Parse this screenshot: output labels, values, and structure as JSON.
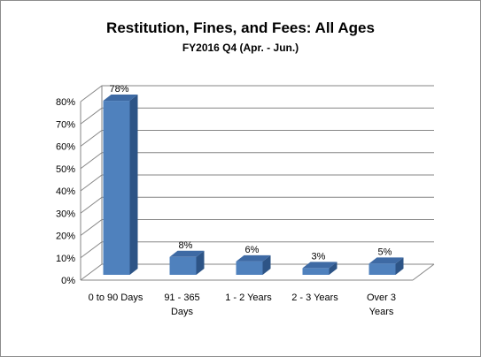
{
  "chart_data": {
    "type": "bar",
    "title": "Restitution,  Fines, and Fees: All Ages",
    "subtitle": "FY2016 Q4 (Apr. - Jun.)",
    "categories": [
      [
        "0 to 90 Days"
      ],
      [
        "91 - 365",
        "Days"
      ],
      [
        "1 - 2 Years"
      ],
      [
        "2 - 3 Years"
      ],
      [
        "Over 3",
        "Years"
      ]
    ],
    "values": [
      78,
      8,
      6,
      3,
      5
    ],
    "data_labels": [
      "78%",
      "8%",
      "6%",
      "3%",
      "5%"
    ],
    "ylim": [
      0,
      80
    ],
    "yticks": [
      0,
      10,
      20,
      30,
      40,
      50,
      60,
      70,
      80
    ],
    "ytick_labels": [
      "0%",
      "10%",
      "20%",
      "30%",
      "40%",
      "50%",
      "60%",
      "70%",
      "80%"
    ],
    "grid": true,
    "style": "3d-column",
    "colors": {
      "bar_front": "#4f81bd",
      "bar_side": "#2d5486",
      "bar_top": "#3e6aa4",
      "grid": "#868686",
      "wall": "#ffffff"
    }
  }
}
